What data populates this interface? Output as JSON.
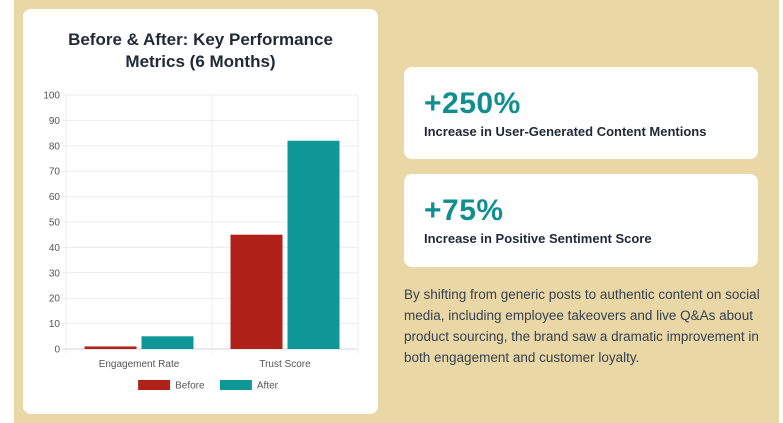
{
  "chart_data": {
    "type": "bar",
    "title_line1": "Before & After: Key Performance",
    "title_line2": "Metrics (6 Months)",
    "categories": [
      "Engagement Rate",
      "Trust Score"
    ],
    "series": [
      {
        "name": "Before",
        "color": "#b0211a",
        "values": [
          1,
          45
        ]
      },
      {
        "name": "After",
        "color": "#0f9696",
        "values": [
          5,
          82
        ]
      }
    ],
    "ylim": [
      0,
      100
    ],
    "yticks": [
      0,
      10,
      20,
      30,
      40,
      50,
      60,
      70,
      80,
      90,
      100
    ],
    "xlabel": "",
    "ylabel": "",
    "legend_position": "bottom"
  },
  "stats": [
    {
      "value": "+250%",
      "label": "Increase in User-Generated Content Mentions"
    },
    {
      "value": "+75%",
      "label": "Increase in Positive Sentiment Score"
    }
  ],
  "description": "By shifting from generic posts to authentic content on social media, including employee takeovers and live Q&As about product sourcing, the brand saw a dramatic improvement in both engagement and customer loyalty.",
  "colors": {
    "background": "#e9d7a6",
    "accent": "#0f8f8f",
    "before": "#b0211a",
    "after": "#0f9696"
  }
}
